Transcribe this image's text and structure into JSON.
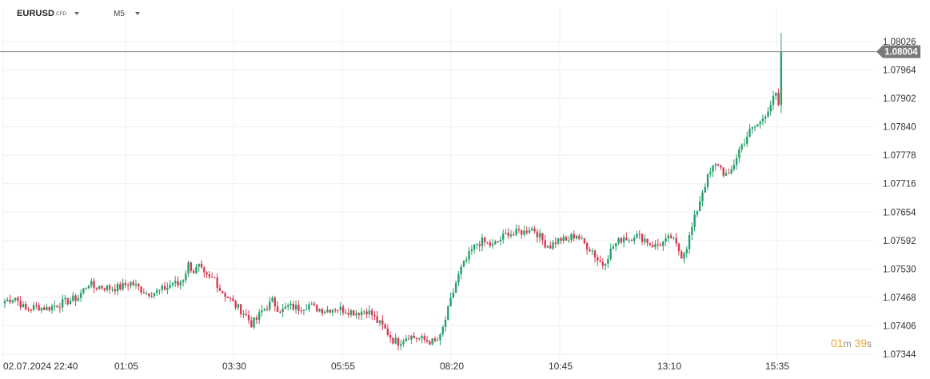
{
  "toolbar": {
    "symbol": "EURUSD",
    "instrument_type": "CFD",
    "timeframe": "M5"
  },
  "current_price": "1.08004",
  "countdown": {
    "minutes": "01",
    "m_unit": "m",
    "seconds": "39",
    "s_unit": "s"
  },
  "colors": {
    "up": "#26a06b",
    "down": "#d83a52",
    "price_line": "#888888",
    "price_tag": "#7a7a7a",
    "countdown": "#f0a830"
  },
  "icons": {
    "symbol_dropdown": "caret-down-icon",
    "timeframe_dropdown": "caret-down-icon"
  },
  "chart_data": {
    "type": "candlestick",
    "timeframe": "M5",
    "y_ticks": [
      "1.08026",
      "1.07964",
      "1.07902",
      "1.07840",
      "1.07778",
      "1.07716",
      "1.07654",
      "1.07592",
      "1.07530",
      "1.07468",
      "1.07406",
      "1.07344"
    ],
    "x_ticks": [
      "02.07.2024  22:40",
      "01:05",
      "03:30",
      "05:55",
      "08:20",
      "10:45",
      "13:10",
      "15:35"
    ],
    "ylim": [
      1.0732,
      1.0806
    ],
    "last_price": 1.08004,
    "grid": true,
    "close_path": [
      [
        0,
        1.0746
      ],
      [
        4,
        1.07468
      ],
      [
        8,
        1.0744
      ],
      [
        12,
        1.07448
      ],
      [
        16,
        1.07444
      ],
      [
        20,
        1.07452
      ],
      [
        24,
        1.0746
      ],
      [
        28,
        1.07468
      ],
      [
        30,
        1.07485
      ],
      [
        32,
        1.075
      ],
      [
        34,
        1.0749
      ],
      [
        36,
        1.07492
      ],
      [
        40,
        1.07488
      ],
      [
        44,
        1.0749
      ],
      [
        48,
        1.075
      ],
      [
        52,
        1.07485
      ],
      [
        54,
        1.07478
      ],
      [
        58,
        1.0748
      ],
      [
        62,
        1.0749
      ],
      [
        64,
        1.075
      ],
      [
        66,
        1.07495
      ],
      [
        68,
        1.0751
      ],
      [
        70,
        1.0754
      ],
      [
        72,
        1.07525
      ],
      [
        74,
        1.07535
      ],
      [
        76,
        1.07515
      ],
      [
        78,
        1.07508
      ],
      [
        80,
        1.0751
      ],
      [
        82,
        1.07485
      ],
      [
        84,
        1.07475
      ],
      [
        86,
        1.07462
      ],
      [
        88,
        1.0745
      ],
      [
        90,
        1.0744
      ],
      [
        92,
        1.07428
      ],
      [
        94,
        1.0741
      ],
      [
        96,
        1.0742
      ],
      [
        98,
        1.07438
      ],
      [
        100,
        1.07448
      ],
      [
        102,
        1.0746
      ],
      [
        104,
        1.07445
      ],
      [
        106,
        1.0744
      ],
      [
        108,
        1.07448
      ],
      [
        112,
        1.07445
      ],
      [
        116,
        1.07452
      ],
      [
        118,
        1.07445
      ],
      [
        122,
        1.0744
      ],
      [
        126,
        1.07445
      ],
      [
        130,
        1.0744
      ],
      [
        134,
        1.07435
      ],
      [
        138,
        1.0744
      ],
      [
        140,
        1.0743
      ],
      [
        142,
        1.07415
      ],
      [
        144,
        1.07405
      ],
      [
        146,
        1.0739
      ],
      [
        148,
        1.07375
      ],
      [
        150,
        1.0737
      ],
      [
        152,
        1.07378
      ],
      [
        154,
        1.07385
      ],
      [
        156,
        1.0738
      ],
      [
        158,
        1.07378
      ],
      [
        160,
        1.07375
      ],
      [
        162,
        1.07372
      ],
      [
        164,
        1.0737
      ],
      [
        166,
        1.0738
      ],
      [
        168,
        1.0742
      ],
      [
        170,
        1.0746
      ],
      [
        172,
        1.075
      ],
      [
        174,
        1.0753
      ],
      [
        176,
        1.0755
      ],
      [
        178,
        1.0757
      ],
      [
        180,
        1.07585
      ],
      [
        182,
        1.0759
      ],
      [
        184,
        1.07585
      ],
      [
        186,
        1.0758
      ],
      [
        188,
        1.0759
      ],
      [
        190,
        1.076
      ],
      [
        192,
        1.0761
      ],
      [
        194,
        1.07605
      ],
      [
        196,
        1.07612
      ],
      [
        198,
        1.0761
      ],
      [
        200,
        1.0762
      ],
      [
        202,
        1.07615
      ],
      [
        204,
        1.076
      ],
      [
        206,
        1.07585
      ],
      [
        208,
        1.0758
      ],
      [
        210,
        1.0759
      ],
      [
        212,
        1.07595
      ],
      [
        214,
        1.0759
      ],
      [
        216,
        1.076
      ],
      [
        218,
        1.07605
      ],
      [
        220,
        1.0759
      ],
      [
        222,
        1.0758
      ],
      [
        224,
        1.0757
      ],
      [
        226,
        1.0755
      ],
      [
        228,
        1.0754
      ],
      [
        230,
        1.0756
      ],
      [
        232,
        1.0758
      ],
      [
        234,
        1.0759
      ],
      [
        236,
        1.076
      ],
      [
        238,
        1.07595
      ],
      [
        240,
        1.07605
      ],
      [
        242,
        1.076
      ],
      [
        244,
        1.07595
      ],
      [
        246,
        1.07585
      ],
      [
        248,
        1.0758
      ],
      [
        250,
        1.07585
      ],
      [
        252,
        1.0759
      ],
      [
        254,
        1.076
      ],
      [
        256,
        1.0758
      ],
      [
        258,
        1.0756
      ],
      [
        260,
        1.0758
      ],
      [
        262,
        1.0762
      ],
      [
        264,
        1.0766
      ],
      [
        266,
        1.077
      ],
      [
        268,
        1.0773
      ],
      [
        270,
        1.0775
      ],
      [
        272,
        1.0776
      ],
      [
        274,
        1.0774
      ],
      [
        276,
        1.0773
      ],
      [
        278,
        1.0776
      ],
      [
        280,
        1.0779
      ],
      [
        282,
        1.0781
      ],
      [
        284,
        1.0783
      ],
      [
        286,
        1.0784
      ],
      [
        288,
        1.0785
      ],
      [
        290,
        1.0787
      ],
      [
        292,
        1.0789
      ],
      [
        294,
        1.0791
      ],
      [
        295,
        1.0788
      ],
      [
        296,
        1.08004
      ]
    ],
    "last_candle": {
      "high": 1.08045,
      "low": 1.0787,
      "close": 1.08004
    }
  }
}
